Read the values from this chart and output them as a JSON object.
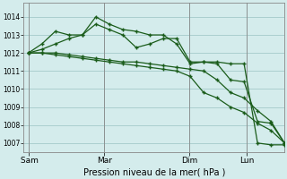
{
  "background_color": "#d4ecec",
  "grid_color": "#aacfcf",
  "line_color": "#1a5c1a",
  "xlabel": "Pression niveau de la mer( hPa )",
  "ylim": [
    1006.5,
    1014.8
  ],
  "yticks": [
    1007,
    1008,
    1009,
    1010,
    1011,
    1012,
    1013,
    1014
  ],
  "xtick_labels": [
    " Sam",
    "Mar",
    "Dim",
    "Lun"
  ],
  "xtick_positions": [
    0,
    8,
    17,
    23
  ],
  "xlim": [
    -0.5,
    27
  ],
  "series": [
    [
      1012.0,
      1012.5,
      1013.2,
      1013.0,
      1013.0,
      1014.0,
      1013.6,
      1013.3,
      1013.2,
      1013.0,
      1013.0,
      1012.5,
      1011.4,
      1011.5,
      1011.5,
      1011.4,
      1011.4,
      1007.0,
      1006.9,
      1006.9
    ],
    [
      1012.0,
      1012.2,
      1012.5,
      1012.8,
      1013.0,
      1013.6,
      1013.3,
      1013.0,
      1012.3,
      1012.5,
      1012.8,
      1012.8,
      1011.5,
      1011.5,
      1011.4,
      1010.5,
      1010.4,
      1008.2,
      1008.1,
      1007.0
    ],
    [
      1012.0,
      1012.0,
      1012.0,
      1011.9,
      1011.8,
      1011.7,
      1011.6,
      1011.5,
      1011.5,
      1011.4,
      1011.3,
      1011.2,
      1011.1,
      1011.0,
      1010.5,
      1009.8,
      1009.5,
      1008.8,
      1008.2,
      1007.0
    ],
    [
      1012.0,
      1012.0,
      1011.9,
      1011.8,
      1011.7,
      1011.6,
      1011.5,
      1011.4,
      1011.3,
      1011.2,
      1011.1,
      1011.0,
      1010.7,
      1009.8,
      1009.5,
      1009.0,
      1008.7,
      1008.1,
      1007.7,
      1007.0
    ]
  ]
}
